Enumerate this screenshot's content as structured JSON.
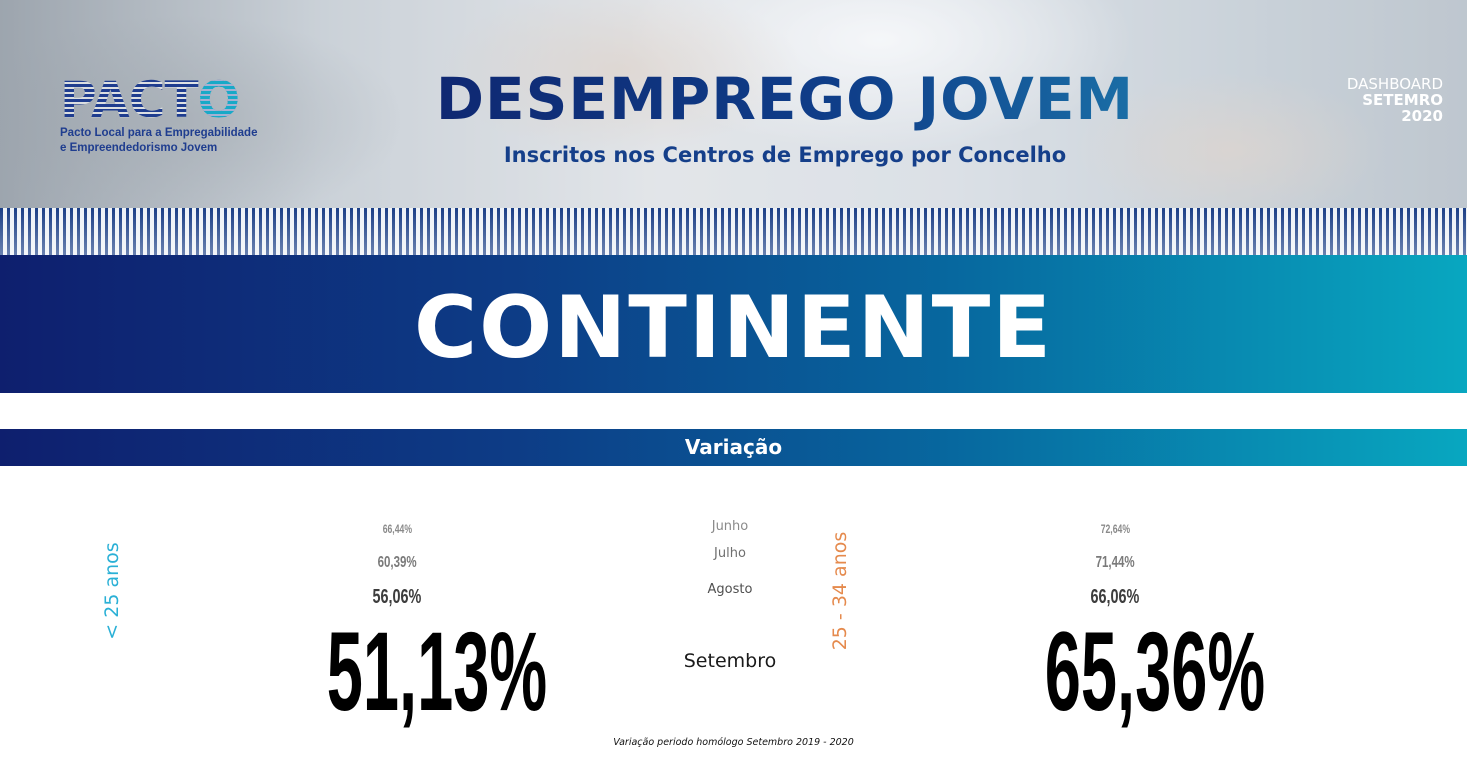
{
  "header": {
    "logo_word": "PACT",
    "logo_word_accent": "O",
    "logo_line1": "Pacto Local para a Empregabilidade",
    "logo_line2": "e Empreendedorismo Jovem",
    "title": "DESEMPREGO JOVEM",
    "subtitle": "Inscritos nos Centros de Emprego por Concelho",
    "dashboard_label": "DASHBOARD",
    "dashboard_month": "SETEMRO",
    "dashboard_year": "2020"
  },
  "region": {
    "name": "CONTINENTE"
  },
  "section": {
    "title": "Variação"
  },
  "groups": {
    "young": {
      "label": "< 25 anos",
      "junho": "66,44%",
      "julho": "60,39%",
      "agosto": "56,06%",
      "setembro": "51,13%"
    },
    "older": {
      "label": "25 - 34 anos",
      "junho": "72,64%",
      "julho": "71,44%",
      "agosto": "66,06%",
      "setembro": "65,36%"
    }
  },
  "months": {
    "junho": "Junho",
    "julho": "Julho",
    "agosto": "Agosto",
    "setembro": "Setembro"
  },
  "footnote": "Variação periodo homólogo Setembro 2019 - 2020",
  "colors": {
    "navy": "#0e1f6e",
    "teal": "#08a7c0",
    "young_label": "#2ab0d6",
    "older_label": "#e58a4d"
  }
}
